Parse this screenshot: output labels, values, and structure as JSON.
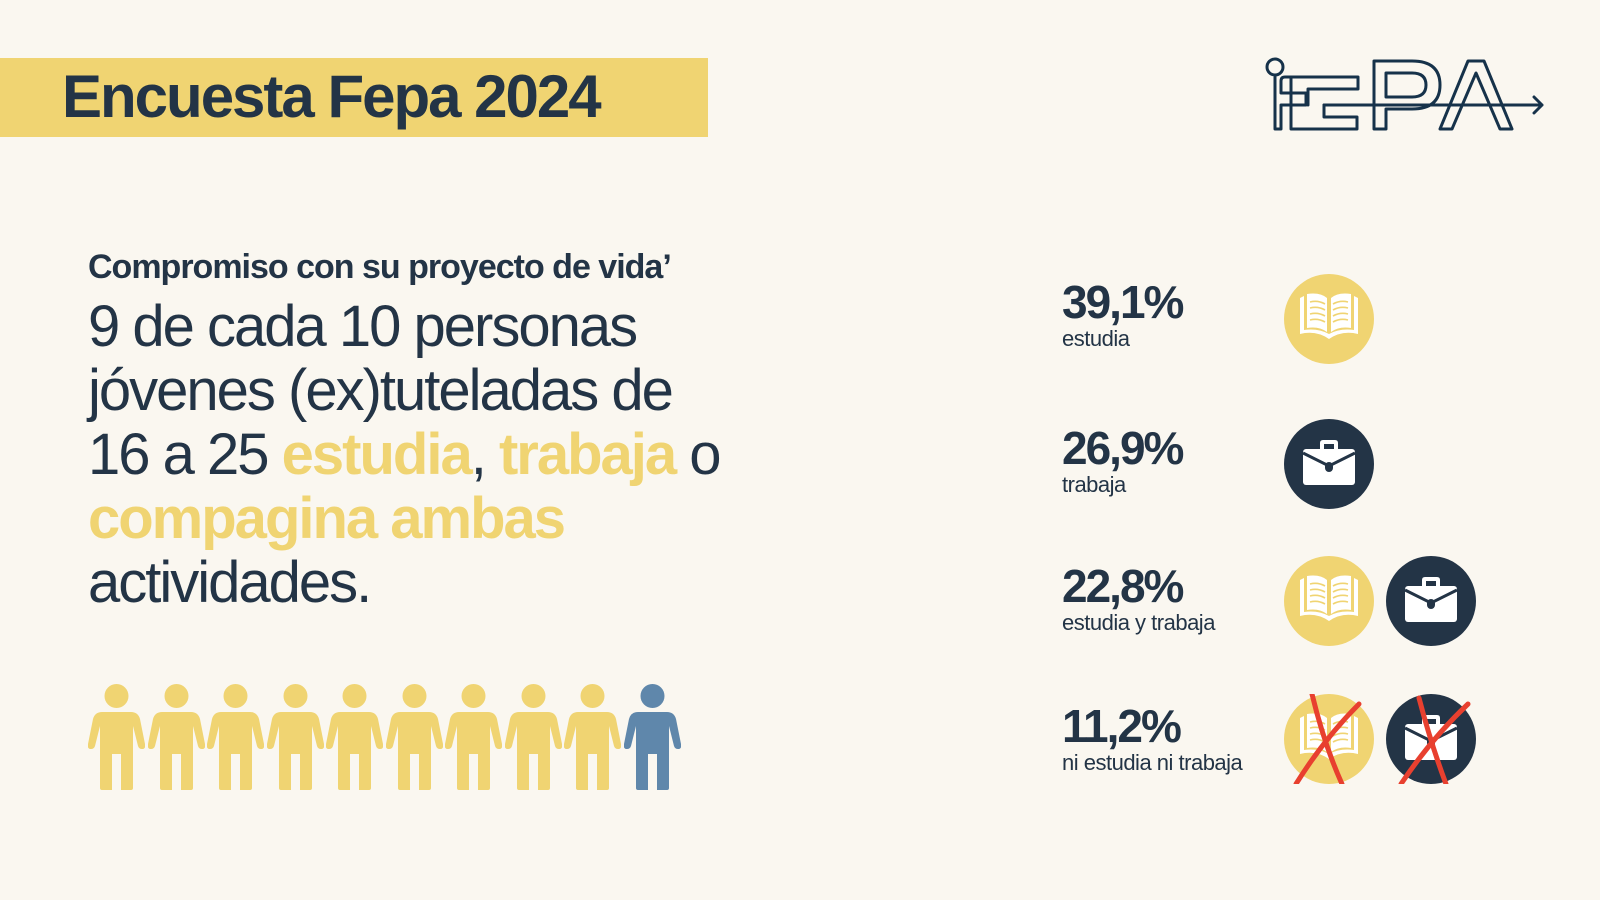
{
  "header": {
    "title": "Encuesta Fepa 2024",
    "logo_text": "FEPA"
  },
  "main": {
    "subtitle": "Compromiso con su proyecto de vida’",
    "headline": {
      "line1": "9 de cada 10 personas",
      "line2": "jóvenes (ex)tuteladas de",
      "line3_a": "16 a 25 ",
      "hl1": "estudia",
      "comma": ", ",
      "hl2": "trabaja",
      "line3_b": " o",
      "hl3": "compagina ambas",
      "line5": "actividades."
    },
    "people": {
      "total": 10,
      "highlighted": 9
    }
  },
  "stats": [
    {
      "value": "39,1%",
      "label": "estudia",
      "icons": [
        "book-icon"
      ]
    },
    {
      "value": "26,9%",
      "label": "trabaja",
      "icons": [
        "briefcase-icon"
      ]
    },
    {
      "value": "22,8%",
      "label": "estudia y trabaja",
      "icons": [
        "book-icon",
        "briefcase-icon"
      ]
    },
    {
      "value": "11,2%",
      "label": "ni estudia ni trabaja",
      "icons": [
        "book-crossed-icon",
        "briefcase-crossed-icon"
      ]
    }
  ],
  "colors": {
    "background": "#faf7f0",
    "yellow": "#f0d472",
    "navy": "#233446",
    "blue": "#5f87ab",
    "red": "#e8402f"
  }
}
